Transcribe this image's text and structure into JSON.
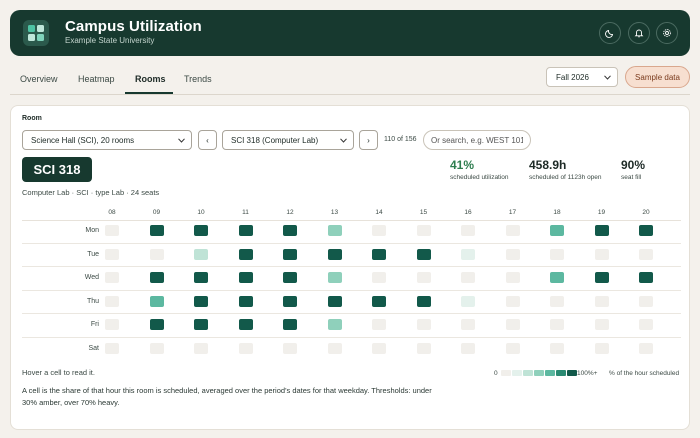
{
  "header": {
    "title": "Campus Utilization",
    "subtitle": "Example State University",
    "icons": [
      "moon-icon",
      "bell-icon",
      "gear-icon"
    ]
  },
  "tabs": [
    {
      "label": "Overview",
      "active": false
    },
    {
      "label": "Heatmap",
      "active": false
    },
    {
      "label": "Rooms",
      "active": true
    },
    {
      "label": "Trends",
      "active": false
    }
  ],
  "term": {
    "value": "Fall 2026"
  },
  "sample_button": {
    "label": "Sample data"
  },
  "room_panel": {
    "section_label": "Room",
    "building_select": "Science Hall (SCI), 20 rooms",
    "prev_label": "‹",
    "room_select": "SCI 318 (Computer Lab)",
    "next_label": "›",
    "count_text": "110 of 156",
    "search_placeholder": "Or search, e.g. WEST 101",
    "room_code": "SCI 318",
    "room_desc": "Computer Lab · SCI · type Lab · 24 seats"
  },
  "stats": [
    {
      "value": "41%",
      "label": "scheduled utilization",
      "color": "#2e7d4f"
    },
    {
      "value": "458.9h",
      "label": "scheduled of 1123h open",
      "color": "#1d2a26"
    },
    {
      "value": "90%",
      "label": "seat fill",
      "color": "#1d2a26"
    }
  ],
  "grid": {
    "hours": [
      "08",
      "09",
      "10",
      "11",
      "12",
      "13",
      "14",
      "15",
      "16",
      "17",
      "18",
      "19",
      "20"
    ],
    "days": [
      "Mon",
      "Tue",
      "Wed",
      "Thu",
      "Fri",
      "Sat"
    ],
    "levels": [
      [
        0,
        6,
        6,
        6,
        6,
        3,
        0,
        0,
        0,
        0,
        4,
        6,
        6
      ],
      [
        0,
        0,
        2,
        6,
        6,
        6,
        6,
        6,
        1,
        0,
        0,
        0,
        0
      ],
      [
        0,
        6,
        6,
        6,
        6,
        3,
        0,
        0,
        0,
        0,
        4,
        6,
        6
      ],
      [
        0,
        4,
        6,
        6,
        6,
        6,
        6,
        6,
        1,
        0,
        0,
        0,
        0
      ],
      [
        0,
        6,
        6,
        6,
        6,
        3,
        0,
        0,
        0,
        0,
        0,
        0,
        0
      ],
      [
        0,
        0,
        0,
        0,
        0,
        0,
        0,
        0,
        0,
        0,
        0,
        0,
        0
      ]
    ],
    "palette": [
      "#f1efeb",
      "#e4f1ec",
      "#bfe3d6",
      "#8fd0bb",
      "#5cb8a0",
      "#2a8a72",
      "#12594a"
    ]
  },
  "legend": {
    "min_label": "0",
    "max_label": "100%+",
    "note": "% of the hour scheduled"
  },
  "footer": {
    "hover_hint": "Hover a cell to read it.",
    "description": "A cell is the share of that hour this room is scheduled, averaged over the period's dates for that weekday. Thresholds: under 30% amber, over 70% heavy."
  }
}
